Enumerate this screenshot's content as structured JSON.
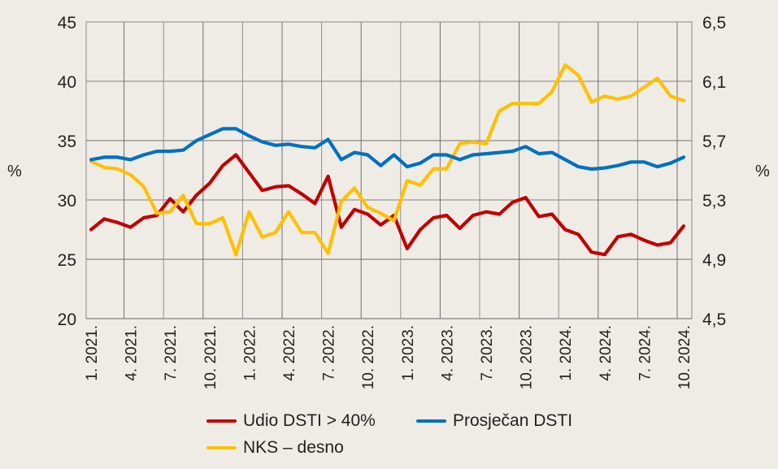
{
  "chart_data": {
    "type": "line",
    "title": "",
    "xlabel": "",
    "ylabel": "%",
    "ylabel_right": "%",
    "ylim": [
      20,
      45
    ],
    "ylim_right": [
      4.5,
      6.5
    ],
    "yticks": [
      "20",
      "25",
      "30",
      "35",
      "40",
      "45"
    ],
    "yticks_right": [
      "4,5",
      "4,9",
      "5,3",
      "5,7",
      "6,1",
      "6,5"
    ],
    "grid": true,
    "legend_position": "bottom",
    "x_tick_labels": [
      "1. 2021.",
      "4. 2021.",
      "7. 2021.",
      "10. 2021.",
      "1. 2022.",
      "4. 2022.",
      "7. 2022.",
      "10. 2022.",
      "1. 2023.",
      "4. 2023.",
      "7. 2023.",
      "10. 2023.",
      "1. 2024.",
      "4. 2024.",
      "7. 2024.",
      "10. 2024."
    ],
    "x_period": "monthly, 1/2021 – 10/2024",
    "series": [
      {
        "name": "Udio DSTI > 40%",
        "axis": "left",
        "color": "#c00000",
        "values": [
          27.5,
          28.4,
          28.1,
          27.7,
          28.5,
          28.7,
          30.1,
          29.0,
          30.4,
          31.4,
          32.9,
          33.8,
          32.3,
          30.8,
          31.1,
          31.2,
          30.5,
          29.7,
          32.0,
          27.7,
          29.2,
          28.8,
          27.9,
          28.7,
          25.9,
          27.5,
          28.5,
          28.7,
          27.6,
          28.7,
          29.0,
          28.8,
          29.8,
          30.2,
          28.6,
          28.8,
          27.5,
          27.1,
          25.6,
          25.4,
          26.9,
          27.1,
          26.6,
          26.2,
          26.4,
          27.8
        ]
      },
      {
        "name": "Prosječan DSTI",
        "axis": "left",
        "color": "#0070c0",
        "values": [
          33.4,
          33.6,
          33.6,
          33.4,
          33.8,
          34.1,
          34.1,
          34.2,
          35.0,
          35.5,
          36.0,
          36.0,
          35.4,
          34.9,
          34.6,
          34.7,
          34.5,
          34.4,
          35.1,
          33.4,
          34.0,
          33.8,
          32.9,
          33.8,
          32.8,
          33.1,
          33.8,
          33.8,
          33.4,
          33.8,
          33.9,
          34.0,
          34.1,
          34.5,
          33.9,
          34.0,
          33.4,
          32.8,
          32.6,
          32.7,
          32.9,
          33.2,
          33.2,
          32.8,
          33.1,
          33.6
        ]
      },
      {
        "name": "NKS – desno",
        "axis": "right",
        "color": "#ffc000",
        "values": [
          5.56,
          5.52,
          5.51,
          5.47,
          5.39,
          5.21,
          5.22,
          5.33,
          5.14,
          5.14,
          5.18,
          4.93,
          5.22,
          5.05,
          5.08,
          5.22,
          5.08,
          5.08,
          4.94,
          5.29,
          5.38,
          5.25,
          5.21,
          5.16,
          5.43,
          5.4,
          5.51,
          5.51,
          5.68,
          5.69,
          5.68,
          5.9,
          5.95,
          5.95,
          5.95,
          6.03,
          6.21,
          6.14,
          5.96,
          6.0,
          5.98,
          6.0,
          6.06,
          6.12,
          6.0,
          5.97
        ]
      }
    ]
  },
  "legend": {
    "items": [
      {
        "label": "Udio DSTI > 40%",
        "color": "#c00000"
      },
      {
        "label": "Prosječan DSTI",
        "color": "#0070c0"
      },
      {
        "label": "NKS – desno",
        "color": "#ffc000"
      }
    ]
  }
}
